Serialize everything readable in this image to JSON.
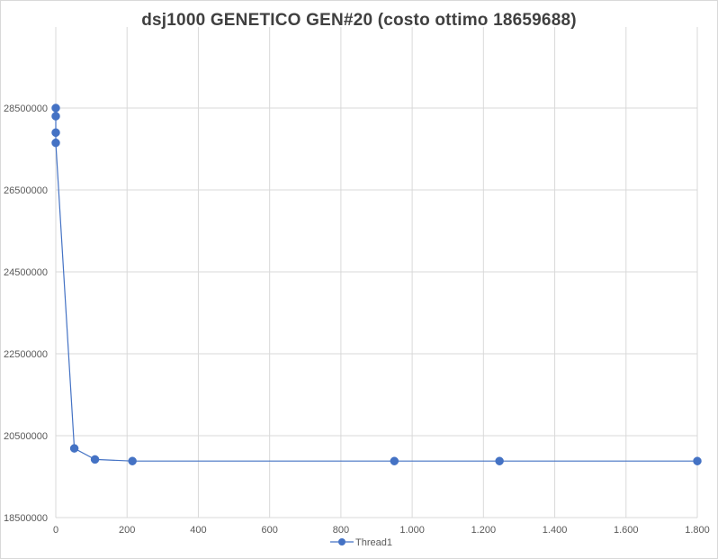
{
  "chart_data": {
    "type": "line",
    "title": "dsj1000 GENETICO  GEN#20 (costo ottimo  18659688)",
    "xlabel": "",
    "ylabel": "",
    "xlim": [
      0,
      1800
    ],
    "ylim": [
      18500000,
      28500000
    ],
    "x_ticks": [
      0,
      200,
      400,
      600,
      800,
      1000,
      1200,
      1400,
      1600,
      1800
    ],
    "x_tick_labels": [
      "0",
      "200",
      "400",
      "600",
      "800",
      "1.000",
      "1.200",
      "1.400",
      "1.600",
      "1.800"
    ],
    "y_ticks": [
      18500000,
      20500000,
      22500000,
      24500000,
      26500000,
      28500000
    ],
    "y_tick_labels": [
      "18500000",
      "20500000",
      "22500000",
      "24500000",
      "26500000",
      "28500000"
    ],
    "grid": true,
    "legend_position": "bottom",
    "series": [
      {
        "name": "Thread1",
        "color": "#4472c4",
        "points": [
          [
            0,
            28500000
          ],
          [
            0,
            28300000
          ],
          [
            0,
            27900000
          ],
          [
            0,
            27650000
          ],
          [
            52,
            20190000
          ],
          [
            110,
            19920000
          ],
          [
            215,
            19880000
          ],
          [
            950,
            19880000
          ],
          [
            1245,
            19880000
          ],
          [
            1800,
            19880000
          ]
        ]
      }
    ]
  }
}
